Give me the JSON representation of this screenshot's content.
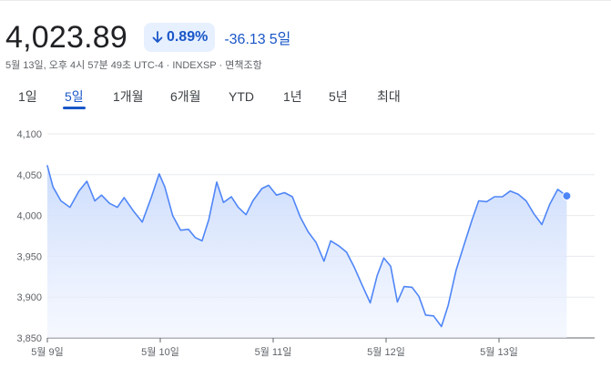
{
  "header": {
    "price": "4,023.89",
    "change_pct": "0.89%",
    "change_abs": "-36.13",
    "change_period": "5일",
    "meta": "5월 13일, 오후 4시 57분 49초 UTC-4 · INDEXSP · 면책조항"
  },
  "tabs": [
    {
      "label": "1일",
      "active": false
    },
    {
      "label": "5일",
      "active": true
    },
    {
      "label": "1개월",
      "active": false
    },
    {
      "label": "6개월",
      "active": false
    },
    {
      "label": "YTD",
      "active": false
    },
    {
      "label": "1년",
      "active": false
    },
    {
      "label": "5년",
      "active": false
    },
    {
      "label": "최대",
      "active": false
    }
  ],
  "colors": {
    "accent": "#1a56c8",
    "line": "#4f86f7",
    "fill_top": "#c9dafc",
    "grid": "#e8eaed"
  },
  "chart_data": {
    "type": "area",
    "ylim": [
      3850,
      4100
    ],
    "y_ticks": [
      "4,100",
      "4,050",
      "4,000",
      "3,950",
      "3,900",
      "3,850"
    ],
    "y_tick_values": [
      4100,
      4050,
      4000,
      3950,
      3900,
      3850
    ],
    "x_ticks": [
      "5월 9일",
      "5월 10일",
      "5월 11일",
      "5월 12일",
      "5월 13일"
    ],
    "x_tick_positions": [
      0,
      1,
      2,
      3,
      4
    ],
    "x_domain": [
      0,
      4.85
    ],
    "grid": true,
    "series": [
      {
        "values": [
          [
            0.0,
            4061
          ],
          [
            0.05,
            4035
          ],
          [
            0.12,
            4018
          ],
          [
            0.2,
            4010
          ],
          [
            0.28,
            4030
          ],
          [
            0.35,
            4042
          ],
          [
            0.42,
            4018
          ],
          [
            0.48,
            4025
          ],
          [
            0.55,
            4015
          ],
          [
            0.62,
            4010
          ],
          [
            0.68,
            4022
          ],
          [
            0.76,
            4006
          ],
          [
            0.84,
            3992
          ],
          [
            0.92,
            4022
          ],
          [
            0.99,
            4051
          ],
          [
            1.04,
            4035
          ],
          [
            1.11,
            4000
          ],
          [
            1.18,
            3982
          ],
          [
            1.25,
            3983
          ],
          [
            1.31,
            3973
          ],
          [
            1.37,
            3969
          ],
          [
            1.43,
            3995
          ],
          [
            1.5,
            4041
          ],
          [
            1.56,
            4016
          ],
          [
            1.63,
            4023
          ],
          [
            1.69,
            4010
          ],
          [
            1.76,
            4001
          ],
          [
            1.82,
            4018
          ],
          [
            1.9,
            4033
          ],
          [
            1.96,
            4037
          ],
          [
            2.03,
            4025
          ],
          [
            2.1,
            4028
          ],
          [
            2.17,
            4023
          ],
          [
            2.24,
            3998
          ],
          [
            2.31,
            3980
          ],
          [
            2.38,
            3967
          ],
          [
            2.45,
            3944
          ],
          [
            2.51,
            3969
          ],
          [
            2.58,
            3963
          ],
          [
            2.65,
            3955
          ],
          [
            2.72,
            3936
          ],
          [
            2.79,
            3914
          ],
          [
            2.86,
            3893
          ],
          [
            2.92,
            3926
          ],
          [
            2.98,
            3948
          ],
          [
            3.04,
            3938
          ],
          [
            3.1,
            3894
          ],
          [
            3.16,
            3913
          ],
          [
            3.23,
            3912
          ],
          [
            3.29,
            3901
          ],
          [
            3.35,
            3878
          ],
          [
            3.42,
            3877
          ],
          [
            3.49,
            3864
          ],
          [
            3.55,
            3890
          ],
          [
            3.62,
            3933
          ],
          [
            3.69,
            3964
          ],
          [
            3.76,
            3994
          ],
          [
            3.82,
            4018
          ],
          [
            3.89,
            4017
          ],
          [
            3.96,
            4023
          ],
          [
            4.03,
            4023
          ],
          [
            4.1,
            4030
          ],
          [
            4.17,
            4026
          ],
          [
            4.24,
            4018
          ],
          [
            4.31,
            4002
          ],
          [
            4.38,
            3989
          ],
          [
            4.45,
            4014
          ],
          [
            4.52,
            4032
          ],
          [
            4.6,
            4024
          ]
        ]
      }
    ]
  }
}
